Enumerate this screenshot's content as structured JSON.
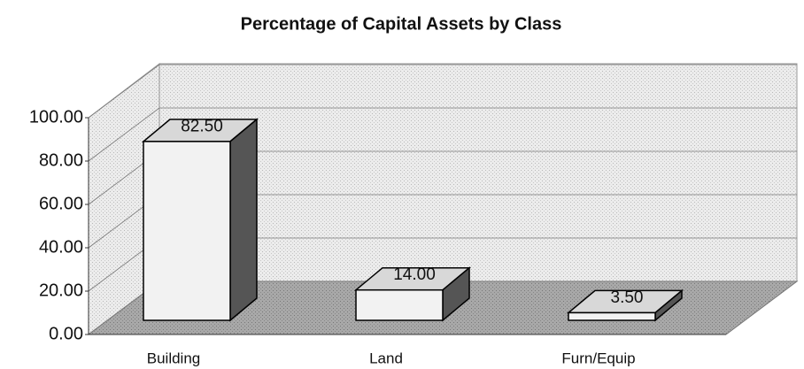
{
  "chart_data": {
    "type": "bar3d",
    "title": "Percentage of Capital Assets by Class",
    "categories": [
      "Building",
      "Land",
      "Furn/Equip"
    ],
    "values": [
      82.5,
      14,
      3.5
    ],
    "value_labels": [
      "82.50",
      "14.00",
      "3.50"
    ],
    "ylim": [
      0,
      100
    ],
    "yticks": [
      {
        "value": 0,
        "label": "0.00"
      },
      {
        "value": 20,
        "label": "20.00"
      },
      {
        "value": 40,
        "label": "40.00"
      },
      {
        "value": 60,
        "label": "60.00"
      },
      {
        "value": 80,
        "label": "80.00"
      },
      {
        "value": 100,
        "label": "100.00"
      }
    ],
    "grid": true,
    "color": "#f2f2f2"
  }
}
